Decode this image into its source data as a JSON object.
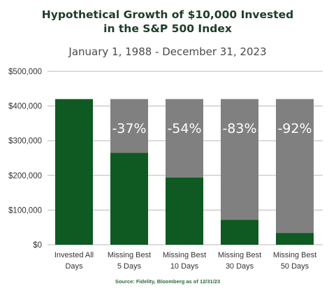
{
  "chart_data": {
    "type": "bar",
    "title_line1": "Hypothetical Growth of $10,000 Invested",
    "title_line2": "in the S&P 500 Index",
    "subtitle": "January 1, 1988 - December 31, 2023",
    "source": "Source: Fidelity, Bloomberg as of 12/31/23",
    "categories": [
      [
        "Invested All",
        "Days"
      ],
      [
        "Missing Best",
        "5 Days"
      ],
      [
        "Missing Best",
        "10 Days"
      ],
      [
        "Missing Best",
        "30 Days"
      ],
      [
        "Missing Best",
        "50 Days"
      ]
    ],
    "total_value": 420000,
    "values": [
      420000,
      265000,
      194000,
      72000,
      34000
    ],
    "loss_labels": [
      "",
      "-37%",
      "-54%",
      "-83%",
      "-92%"
    ],
    "ylim": [
      0,
      500000
    ],
    "yticks": [
      0,
      100000,
      200000,
      300000,
      400000,
      500000
    ],
    "ytick_labels": [
      "$0",
      "$100,000",
      "$200,000",
      "$300,000",
      "$400,000",
      "$500,000"
    ],
    "grid": true,
    "colors": {
      "growth": "#0e5a22",
      "loss": "#808080",
      "grid": "#b8b8b8",
      "title": "#1d3d28",
      "source": "#2e6b3c"
    }
  }
}
